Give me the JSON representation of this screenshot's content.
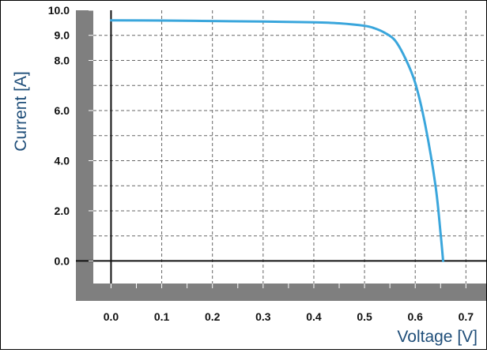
{
  "chart_data": {
    "type": "line",
    "xlabel": "Voltage [V]",
    "ylabel": "Current [A]",
    "xlim": [
      -0.035,
      0.74
    ],
    "ylim": [
      -0.9,
      10.0
    ],
    "x_ticks": [
      0.0,
      0.1,
      0.2,
      0.3,
      0.4,
      0.5,
      0.6,
      0.7
    ],
    "x_tick_labels": [
      "0.0",
      "0.1",
      "0.2",
      "0.3",
      "0.4",
      "0.5",
      "0.6",
      "0.7"
    ],
    "y_ticks": [
      0.0,
      2.0,
      4.0,
      6.0,
      8.0,
      9.0,
      10.0
    ],
    "y_tick_labels": [
      "0.0",
      "2.0",
      "4.0",
      "6.0",
      "8.0",
      "9.0",
      "10.0"
    ],
    "grid": true,
    "series": [
      {
        "color": "#3aa6dc",
        "x": [
          0.0,
          0.1,
          0.2,
          0.3,
          0.4,
          0.45,
          0.5,
          0.52,
          0.54,
          0.56,
          0.58,
          0.6,
          0.62,
          0.64,
          0.65,
          0.655
        ],
        "y": [
          9.6,
          9.59,
          9.57,
          9.55,
          9.52,
          9.48,
          9.38,
          9.28,
          9.1,
          8.8,
          8.1,
          7.1,
          5.4,
          3.0,
          1.1,
          0.0
        ]
      }
    ],
    "colors": {
      "frame_band": "#7f7f7f",
      "axis": "#111111",
      "grid": "#666666",
      "axis_title": "#1f4e79"
    }
  }
}
